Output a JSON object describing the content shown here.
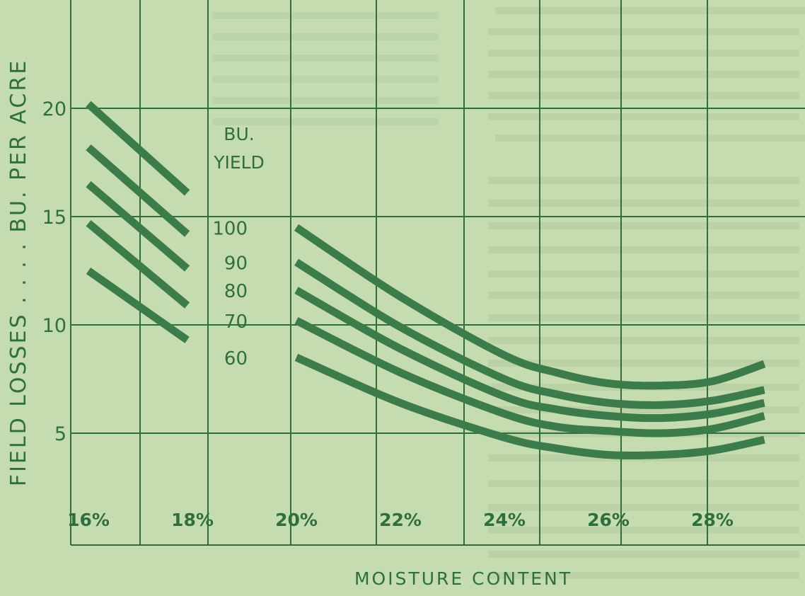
{
  "chart_data": {
    "type": "line",
    "title": "",
    "xlabel": "MOISTURE CONTENT",
    "ylabel": "FIELD LOSSES . . . . BU. PER ACRE",
    "xlim": [
      16,
      29
    ],
    "ylim": [
      0,
      21
    ],
    "x_ticks": [
      16,
      18,
      20,
      22,
      24,
      26,
      28
    ],
    "x_tick_labels": [
      "16%",
      "18%",
      "20%",
      "22%",
      "24%",
      "26%",
      "28%"
    ],
    "y_ticks": [
      5,
      10,
      15,
      20
    ],
    "y_tick_labels": [
      "5",
      "10",
      "15",
      "20"
    ],
    "grid": true,
    "legend_title": [
      "BU.",
      "YIELD"
    ],
    "series": [
      {
        "name": "100",
        "segments": [
          {
            "x": [
              16.0,
              17.9
            ],
            "y": [
              20.2,
              16.1
            ]
          },
          {
            "x": [
              20.0,
              22.0,
              24.0,
              25.0,
              26.0,
              27.0,
              28.0,
              29.0
            ],
            "y": [
              14.5,
              11.3,
              8.6,
              7.8,
              7.3,
              7.2,
              7.4,
              8.2
            ]
          }
        ]
      },
      {
        "name": "90",
        "segments": [
          {
            "x": [
              16.0,
              17.9
            ],
            "y": [
              18.2,
              14.2
            ]
          },
          {
            "x": [
              20.0,
              22.0,
              24.0,
              25.0,
              26.0,
              27.0,
              28.0,
              29.0
            ],
            "y": [
              12.9,
              9.9,
              7.5,
              6.8,
              6.4,
              6.3,
              6.5,
              7.0
            ]
          }
        ]
      },
      {
        "name": "80",
        "segments": [
          {
            "x": [
              16.0,
              17.9
            ],
            "y": [
              16.5,
              12.6
            ]
          },
          {
            "x": [
              20.0,
              22.0,
              24.0,
              25.0,
              26.0,
              27.0,
              28.0,
              29.0
            ],
            "y": [
              11.6,
              8.9,
              6.7,
              6.1,
              5.8,
              5.7,
              5.9,
              6.4
            ]
          }
        ]
      },
      {
        "name": "70",
        "segments": [
          {
            "x": [
              16.0,
              17.9
            ],
            "y": [
              14.7,
              10.9
            ]
          },
          {
            "x": [
              20.0,
              22.0,
              24.0,
              25.0,
              26.0,
              27.0,
              28.0,
              29.0
            ],
            "y": [
              10.2,
              7.8,
              5.9,
              5.3,
              5.1,
              5.0,
              5.2,
              5.8
            ]
          }
        ]
      },
      {
        "name": "60",
        "segments": [
          {
            "x": [
              16.0,
              17.9
            ],
            "y": [
              12.5,
              9.3
            ]
          },
          {
            "x": [
              20.0,
              22.0,
              24.0,
              25.0,
              26.0,
              27.0,
              28.0,
              29.0
            ],
            "y": [
              8.5,
              6.4,
              4.8,
              4.3,
              4.0,
              4.0,
              4.2,
              4.7
            ]
          }
        ]
      }
    ]
  },
  "colors": {
    "background": "#c5dbb0",
    "grid": "#2f6f3f",
    "curve": "#3c7c4a",
    "text": "#2f6f3f",
    "ghost_text": "#a9c397"
  }
}
